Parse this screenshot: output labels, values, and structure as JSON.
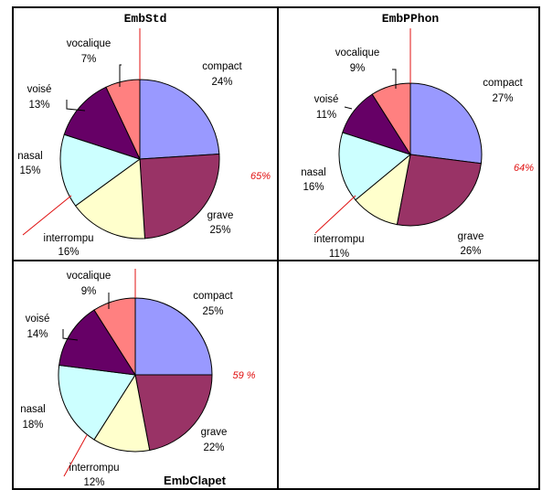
{
  "chart_data": [
    {
      "type": "pie",
      "title": "EmbStd",
      "categories": [
        "compact",
        "grave",
        "interrompu",
        "nasal",
        "voisé",
        "vocalique"
      ],
      "values": [
        24,
        25,
        16,
        15,
        13,
        7
      ],
      "value_labels": [
        "24%",
        "25%",
        "16%",
        "15%",
        "13%",
        "7%"
      ],
      "colors": [
        "#9999ff",
        "#993366",
        "#ffffcc",
        "#ccffff",
        "#660066",
        "#ff8080"
      ],
      "annotation": "65%",
      "annotation_color": "#e01010",
      "legend": "none",
      "labels": "outside-with-leader-lines"
    },
    {
      "type": "pie",
      "title": "EmbPPhon",
      "categories": [
        "compact",
        "grave",
        "interrompu",
        "nasal",
        "voisé",
        "vocalique"
      ],
      "values": [
        27,
        26,
        11,
        16,
        11,
        9
      ],
      "value_labels": [
        "27%",
        "26%",
        "11%",
        "16%",
        "11%",
        "9%"
      ],
      "colors": [
        "#9999ff",
        "#993366",
        "#ffffcc",
        "#ccffff",
        "#660066",
        "#ff8080"
      ],
      "annotation": "64%",
      "annotation_color": "#e01010",
      "legend": "none",
      "labels": "outside-with-leader-lines"
    },
    {
      "type": "pie",
      "title": "EmbClapet",
      "categories": [
        "compact",
        "grave",
        "interrompu",
        "nasal",
        "voisé",
        "vocalique"
      ],
      "values": [
        25,
        22,
        12,
        18,
        14,
        9
      ],
      "value_labels": [
        "25%",
        "22%",
        "12%",
        "18%",
        "14%",
        "9%"
      ],
      "colors": [
        "#9999ff",
        "#993366",
        "#ffffcc",
        "#ccffff",
        "#660066",
        "#ff8080"
      ],
      "annotation": "59 %",
      "annotation_color": "#e01010",
      "legend": "none",
      "labels": "outside-with-leader-lines"
    }
  ]
}
